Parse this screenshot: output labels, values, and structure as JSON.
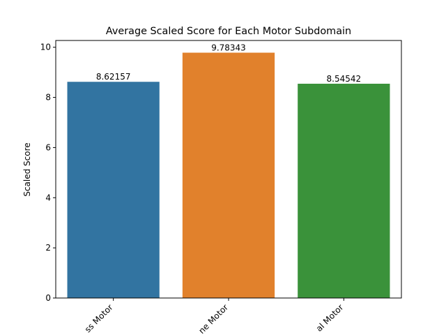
{
  "chart_data": {
    "type": "bar",
    "title": "Average Scaled Score for Each Motor Subdomain",
    "xlabel": "",
    "ylabel": "Scaled Score",
    "ylim": [
      0,
      10.27
    ],
    "yticks": [
      0,
      2,
      4,
      6,
      8,
      10
    ],
    "categories": [
      "Gross Motor",
      "Fine Motor",
      "Total Motor"
    ],
    "category_tick_labels_visible": [
      "ss Motor",
      "ne Motor",
      "al Motor"
    ],
    "values": [
      8.62157,
      9.78343,
      8.54542
    ],
    "data_labels": [
      "8.62157",
      "9.78343",
      "8.54542"
    ],
    "colors": [
      "#3274a1",
      "#e1812c",
      "#3a923a"
    ],
    "grid": false,
    "legend": "none"
  }
}
